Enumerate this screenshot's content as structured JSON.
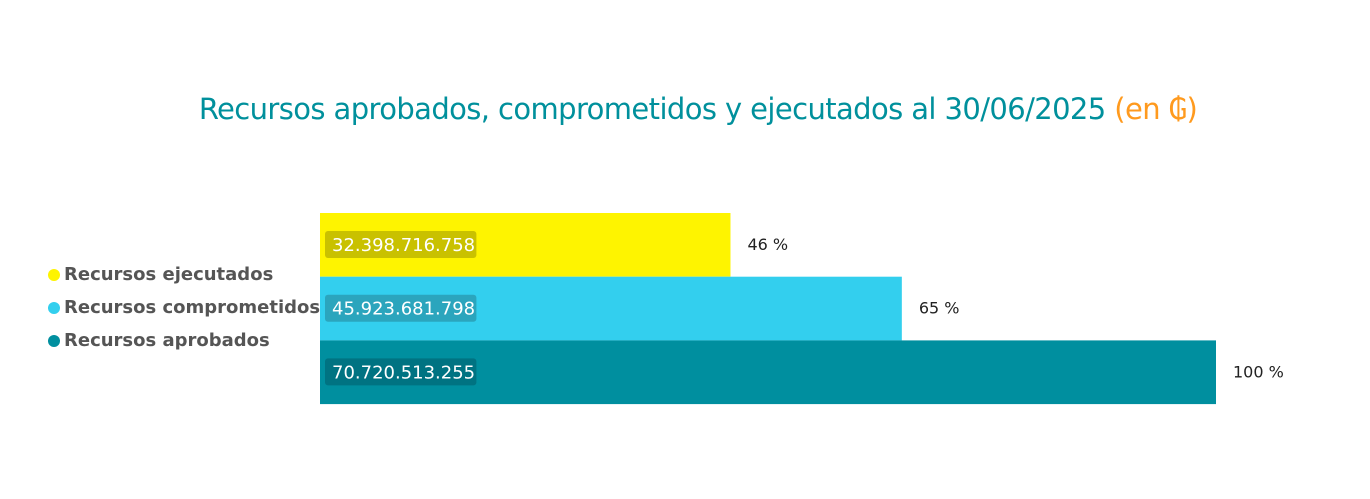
{
  "chart_data": {
    "type": "bar",
    "orientation": "horizontal",
    "title": "Recursos aprobados, comprometidos y ejecutados al 30/06/2025",
    "title_unit": "(en ₲)",
    "categories": [
      "Recursos ejecutados",
      "Recursos comprometidos",
      "Recursos aprobados"
    ],
    "values": [
      32398716758,
      45923681798,
      70720513255
    ],
    "value_labels": [
      "32.398.716.758",
      "45.923.681.798",
      "70.720.513.255"
    ],
    "percent_labels": [
      "46 %",
      "65 %",
      "100 %"
    ],
    "colors": [
      "#fef400",
      "#33cfee",
      "#008f9f"
    ],
    "value_label_box_colors": [
      "#c9c100",
      "#2ba5bd",
      "#007382"
    ],
    "xlim": [
      0,
      70720513255
    ],
    "grid": false,
    "legend_position": "left"
  },
  "legend": {
    "items": [
      {
        "label": "Recursos ejecutados",
        "color": "#fef400"
      },
      {
        "label": "Recursos comprometidos",
        "color": "#33cfee"
      },
      {
        "label": "Recursos aprobados",
        "color": "#008f9f"
      }
    ]
  }
}
